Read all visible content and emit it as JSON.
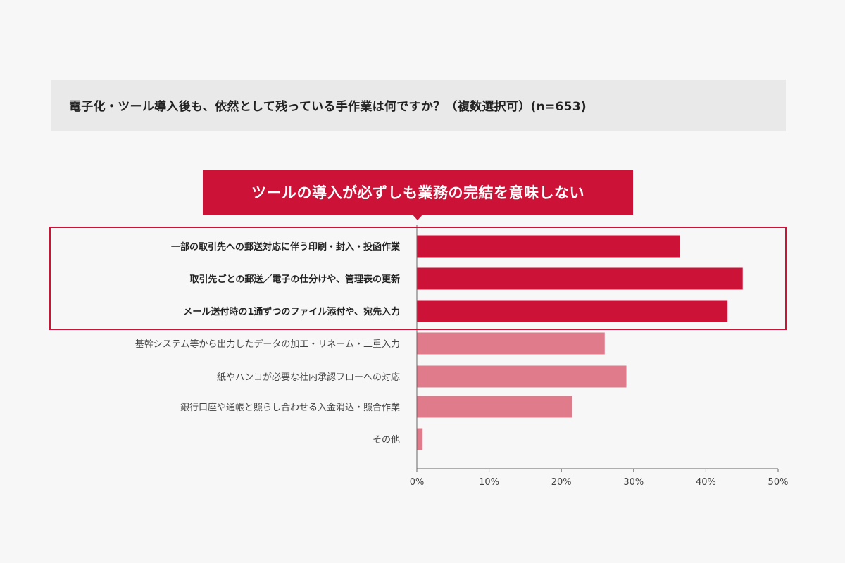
{
  "question": {
    "text": "電子化・ツール導入後も、依然として残っている手作業は何ですか？（複数選択可）(n=653)"
  },
  "callout": {
    "text": "ツールの導入が必ずしも業務の完結を意味しない"
  },
  "colors": {
    "highlight": "#cc1237",
    "muted": "#e07b8c",
    "banner_bg": "#e9e9e9",
    "background": "#f8f7f8"
  },
  "chart_data": {
    "type": "bar",
    "orientation": "horizontal",
    "title": "",
    "xlabel": "",
    "ylabel": "",
    "xlim": [
      0,
      50
    ],
    "x_ticks": [
      "0%",
      "10%",
      "20%",
      "30%",
      "40%",
      "50%"
    ],
    "x_tick_values": [
      0,
      10,
      20,
      30,
      40,
      50
    ],
    "grid": false,
    "categories": [
      "一部の取引先への郵送対応に伴う印刷・封入・投函作業",
      "取引先ごとの郵送／電子の仕分けや、管理表の更新",
      "メール送付時の1通ずつのファイル添付や、宛先入力",
      "基幹システム等から出力したデータの加工・リネーム・二重入力",
      "紙やハンコが必要な社内承認フローへの対応",
      "銀行口座や通帳と照らし合わせる入金消込・照合作業",
      "その他"
    ],
    "values": [
      36.4,
      45.1,
      43.0,
      26.0,
      29.0,
      21.5,
      0.8
    ],
    "highlighted": [
      true,
      true,
      true,
      false,
      false,
      false,
      false
    ]
  }
}
